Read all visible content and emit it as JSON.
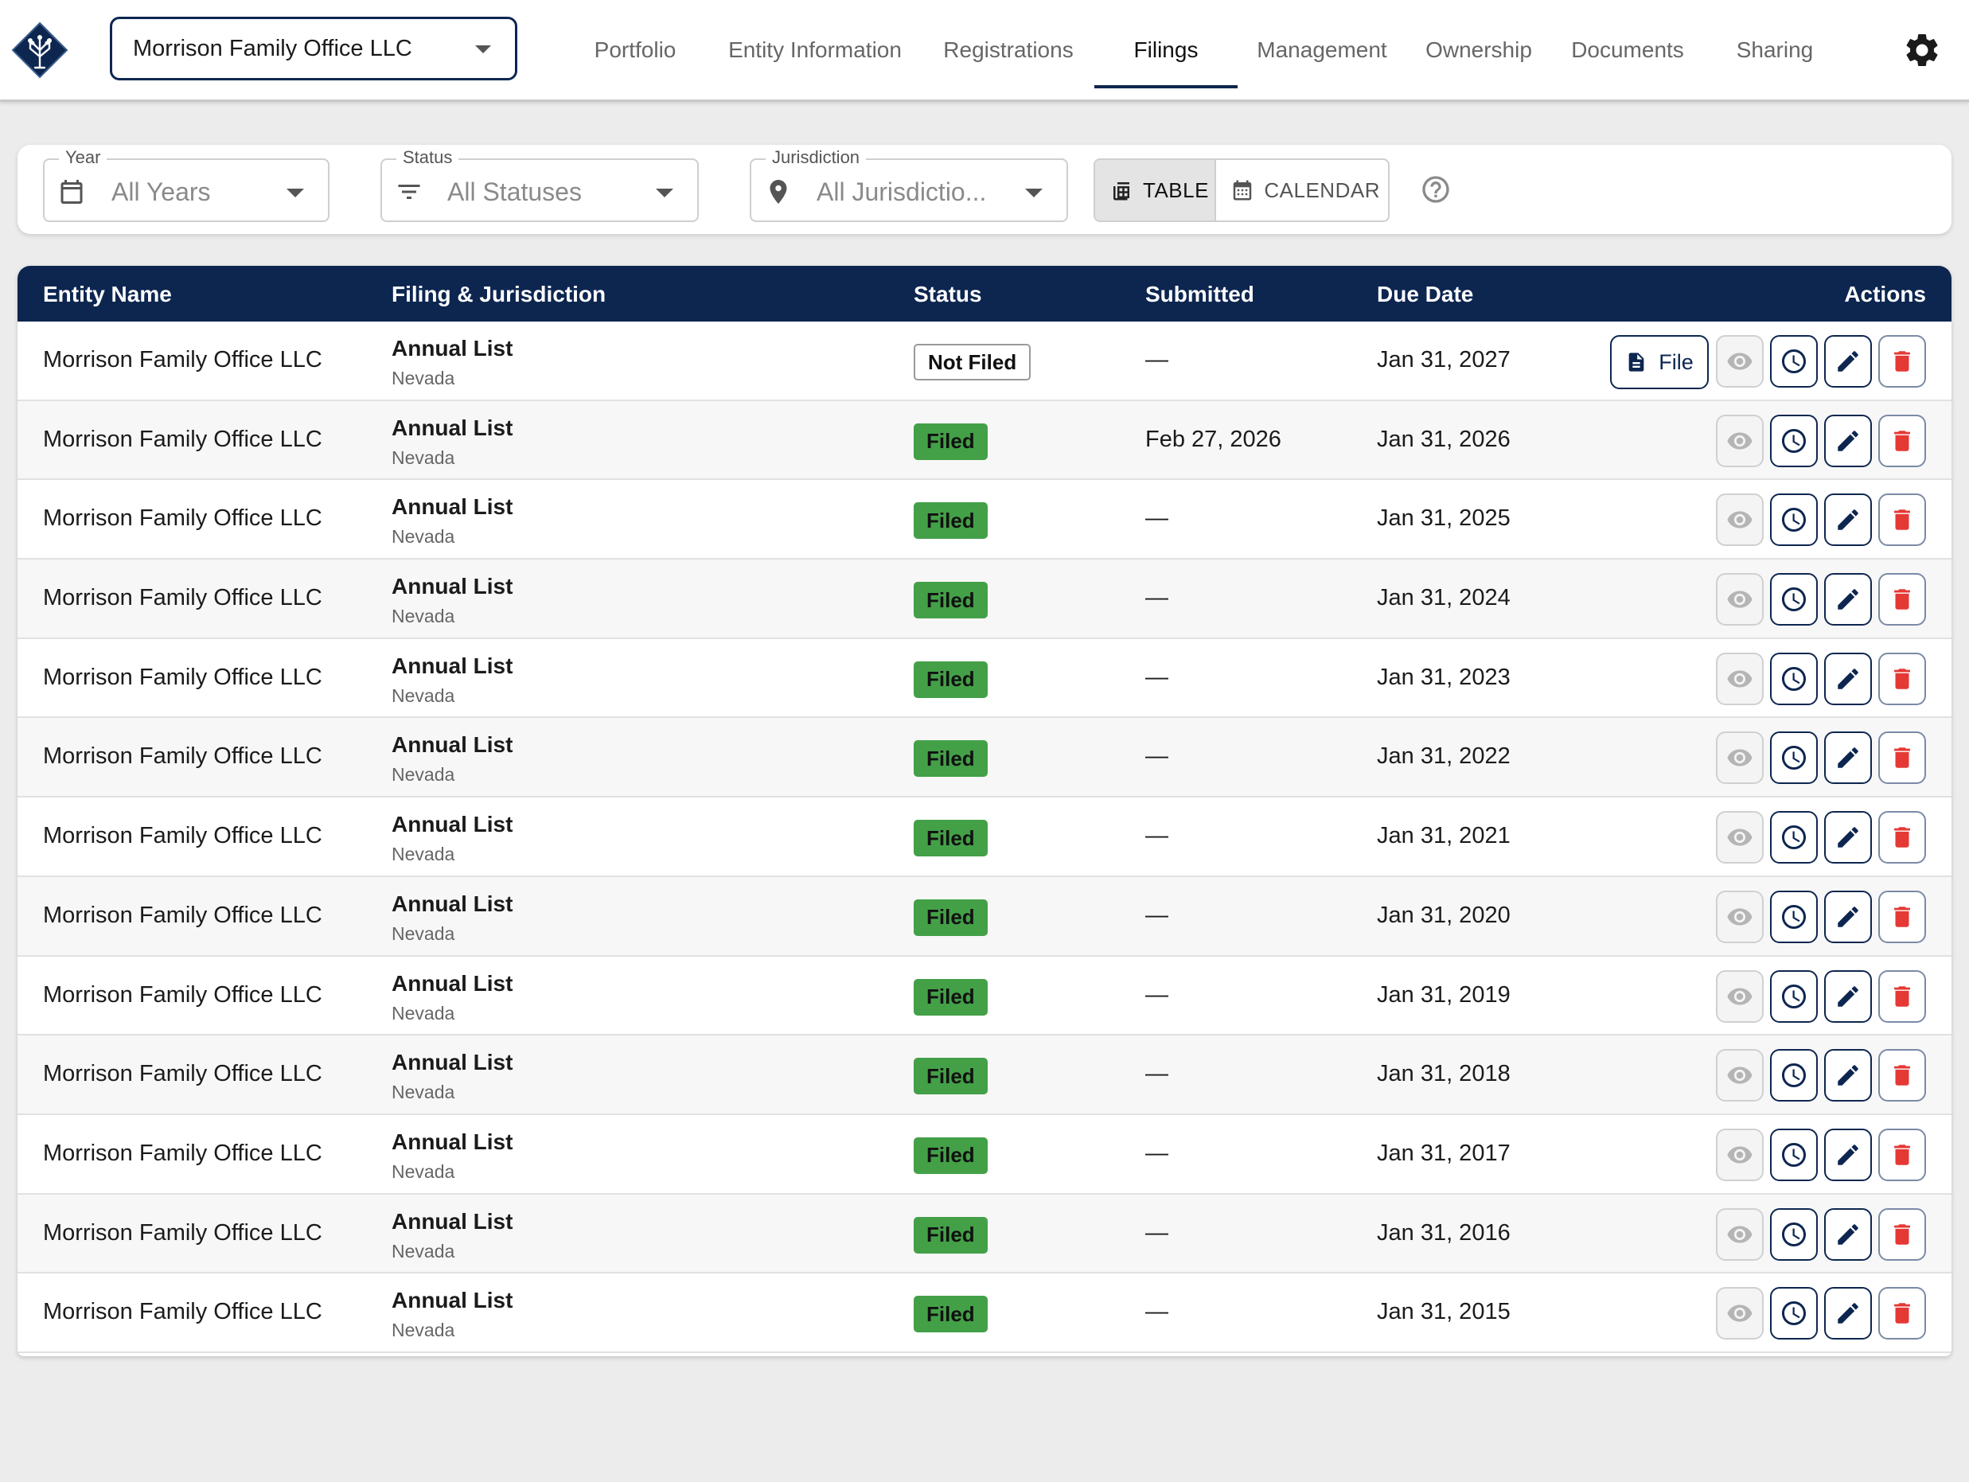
{
  "header": {
    "entity_selector": "Morrison Family Office LLC",
    "nav": [
      {
        "label": "Portfolio",
        "active": false
      },
      {
        "label": "Entity Information",
        "active": false
      },
      {
        "label": "Registrations",
        "active": false
      },
      {
        "label": "Filings",
        "active": true
      },
      {
        "label": "Management",
        "active": false
      },
      {
        "label": "Ownership",
        "active": false
      },
      {
        "label": "Documents",
        "active": false
      },
      {
        "label": "Sharing",
        "active": false
      }
    ]
  },
  "filters": {
    "year": {
      "label": "Year",
      "value": "All Years"
    },
    "status": {
      "label": "Status",
      "value": "All Statuses"
    },
    "jurisdiction": {
      "label": "Jurisdiction",
      "value": "All Jurisdictio..."
    },
    "view_toggle": {
      "table": "TABLE",
      "calendar": "CALENDAR",
      "selected": "TABLE"
    }
  },
  "table": {
    "columns": [
      "Entity Name",
      "Filing & Jurisdiction",
      "Status",
      "Submitted",
      "Due Date",
      "Actions"
    ],
    "file_button_label": "File",
    "rows": [
      {
        "entity": "Morrison Family Office LLC",
        "filing": "Annual List",
        "jurisdiction": "Nevada",
        "status": "Not Filed",
        "submitted": "—",
        "due": "Jan 31, 2027"
      },
      {
        "entity": "Morrison Family Office LLC",
        "filing": "Annual List",
        "jurisdiction": "Nevada",
        "status": "Filed",
        "submitted": "Feb 27, 2026",
        "due": "Jan 31, 2026"
      },
      {
        "entity": "Morrison Family Office LLC",
        "filing": "Annual List",
        "jurisdiction": "Nevada",
        "status": "Filed",
        "submitted": "—",
        "due": "Jan 31, 2025"
      },
      {
        "entity": "Morrison Family Office LLC",
        "filing": "Annual List",
        "jurisdiction": "Nevada",
        "status": "Filed",
        "submitted": "—",
        "due": "Jan 31, 2024"
      },
      {
        "entity": "Morrison Family Office LLC",
        "filing": "Annual List",
        "jurisdiction": "Nevada",
        "status": "Filed",
        "submitted": "—",
        "due": "Jan 31, 2023"
      },
      {
        "entity": "Morrison Family Office LLC",
        "filing": "Annual List",
        "jurisdiction": "Nevada",
        "status": "Filed",
        "submitted": "—",
        "due": "Jan 31, 2022"
      },
      {
        "entity": "Morrison Family Office LLC",
        "filing": "Annual List",
        "jurisdiction": "Nevada",
        "status": "Filed",
        "submitted": "—",
        "due": "Jan 31, 2021"
      },
      {
        "entity": "Morrison Family Office LLC",
        "filing": "Annual List",
        "jurisdiction": "Nevada",
        "status": "Filed",
        "submitted": "—",
        "due": "Jan 31, 2020"
      },
      {
        "entity": "Morrison Family Office LLC",
        "filing": "Annual List",
        "jurisdiction": "Nevada",
        "status": "Filed",
        "submitted": "—",
        "due": "Jan 31, 2019"
      },
      {
        "entity": "Morrison Family Office LLC",
        "filing": "Annual List",
        "jurisdiction": "Nevada",
        "status": "Filed",
        "submitted": "—",
        "due": "Jan 31, 2018"
      },
      {
        "entity": "Morrison Family Office LLC",
        "filing": "Annual List",
        "jurisdiction": "Nevada",
        "status": "Filed",
        "submitted": "—",
        "due": "Jan 31, 2017"
      },
      {
        "entity": "Morrison Family Office LLC",
        "filing": "Annual List",
        "jurisdiction": "Nevada",
        "status": "Filed",
        "submitted": "—",
        "due": "Jan 31, 2016"
      },
      {
        "entity": "Morrison Family Office LLC",
        "filing": "Annual List",
        "jurisdiction": "Nevada",
        "status": "Filed",
        "submitted": "—",
        "due": "Jan 31, 2015"
      }
    ]
  },
  "colors": {
    "brand_navy": "#0d2650",
    "filed_green": "#43a047",
    "delete_red": "#e53935"
  }
}
